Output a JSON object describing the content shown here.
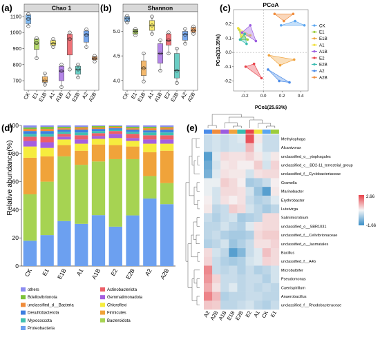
{
  "panel_labels": {
    "a": "(a)",
    "b": "(b)",
    "c": "(c)",
    "d": "(d)",
    "e": "(e)"
  },
  "groups": [
    "CK",
    "E1",
    "E1B",
    "A1",
    "A1B",
    "E2",
    "E2B",
    "A2",
    "A2B"
  ],
  "group_colors": {
    "CK": "#5aa5f0",
    "E1": "#9ccc3c",
    "E1B": "#f0a23c",
    "A1": "#f0e03c",
    "A1B": "#9b5ce0",
    "E2": "#e8424a",
    "E2B": "#38bcb0",
    "A2": "#4a8be8",
    "A2B": "#f08c3c"
  },
  "chart_data": [
    {
      "type": "box",
      "title": "Chao 1",
      "xlabel": "",
      "ylabel": "",
      "ylim": [
        640,
        1130
      ],
      "yticks": [
        700,
        800,
        900,
        1000,
        1100
      ],
      "categories": [
        "CK",
        "E1",
        "E1B",
        "A1",
        "A1B",
        "E2",
        "E2B",
        "A2",
        "A2B"
      ],
      "boxes": [
        {
          "group": "CK",
          "min": 1040,
          "q1": 1055,
          "median": 1085,
          "q3": 1110,
          "max": 1115,
          "points": [
            1040,
            1085,
            1115
          ]
        },
        {
          "group": "E1",
          "min": 840,
          "q1": 895,
          "median": 935,
          "q3": 960,
          "max": 965,
          "points": [
            840,
            935,
            965
          ]
        },
        {
          "group": "E1B",
          "min": 675,
          "q1": 690,
          "median": 700,
          "q3": 725,
          "max": 745,
          "points": [
            675,
            700,
            745
          ]
        },
        {
          "group": "A1",
          "min": 910,
          "q1": 920,
          "median": 930,
          "q3": 950,
          "max": 960,
          "points": [
            910,
            930,
            960
          ]
        },
        {
          "group": "A1B",
          "min": 660,
          "q1": 700,
          "median": 760,
          "q3": 790,
          "max": 800,
          "points": [
            660,
            760,
            800
          ]
        },
        {
          "group": "E2",
          "min": 770,
          "q1": 860,
          "median": 960,
          "q3": 990,
          "max": 1000,
          "points": [
            770,
            960,
            1000
          ]
        },
        {
          "group": "E2B",
          "min": 720,
          "q1": 740,
          "median": 770,
          "q3": 790,
          "max": 800,
          "points": [
            720,
            770,
            800
          ]
        },
        {
          "group": "A2",
          "min": 910,
          "q1": 940,
          "median": 985,
          "q3": 1010,
          "max": 1020,
          "points": [
            910,
            985,
            1020
          ]
        },
        {
          "group": "A2B",
          "min": 820,
          "q1": 830,
          "median": 840,
          "q3": 850,
          "max": 855,
          "points": [
            820,
            840,
            855
          ]
        }
      ]
    },
    {
      "type": "box",
      "title": "Shannon",
      "xlabel": "",
      "ylabel": "",
      "ylim": [
        3.8,
        5.4
      ],
      "yticks": [
        4.0,
        4.5,
        5.0
      ],
      "categories": [
        "CK",
        "E1",
        "E1B",
        "A1",
        "A1B",
        "E2",
        "E2B",
        "A2",
        "A2B"
      ],
      "boxes": [
        {
          "group": "CK",
          "min": 5.18,
          "q1": 5.2,
          "median": 5.26,
          "q3": 5.3,
          "max": 5.32,
          "points": [
            5.18,
            5.26,
            5.32
          ]
        },
        {
          "group": "E1",
          "min": 4.92,
          "q1": 4.95,
          "median": 5.0,
          "q3": 5.04,
          "max": 5.05,
          "points": [
            4.92,
            5.0,
            5.05
          ]
        },
        {
          "group": "E1B",
          "min": 3.98,
          "q1": 4.1,
          "median": 4.25,
          "q3": 4.4,
          "max": 4.55,
          "points": [
            3.98,
            4.25,
            4.55
          ]
        },
        {
          "group": "A1",
          "min": 4.95,
          "q1": 5.02,
          "median": 5.12,
          "q3": 5.22,
          "max": 5.3,
          "points": [
            4.95,
            5.12,
            5.3
          ]
        },
        {
          "group": "A1B",
          "min": 4.2,
          "q1": 4.35,
          "median": 4.55,
          "q3": 4.75,
          "max": 4.82,
          "points": [
            4.2,
            4.55,
            4.82
          ]
        },
        {
          "group": "E2",
          "min": 4.55,
          "q1": 4.72,
          "median": 4.82,
          "q3": 4.95,
          "max": 4.98,
          "points": [
            4.55,
            4.82,
            4.98
          ]
        },
        {
          "group": "E2B",
          "min": 3.95,
          "q1": 4.05,
          "median": 4.2,
          "q3": 4.55,
          "max": 4.65,
          "points": [
            3.95,
            4.2,
            4.65
          ]
        },
        {
          "group": "A2",
          "min": 4.75,
          "q1": 4.82,
          "median": 4.93,
          "q3": 5.0,
          "max": 5.05,
          "points": [
            4.75,
            4.93,
            5.05
          ]
        },
        {
          "group": "A2B",
          "min": 4.95,
          "q1": 4.98,
          "median": 5.02,
          "q3": 5.08,
          "max": 5.1,
          "points": [
            4.95,
            5.02,
            5.1
          ]
        }
      ]
    },
    {
      "type": "scatter",
      "title": "PCoA",
      "xlabel": "PCo1(25.63%)",
      "ylabel": "PCo2(13.35%)",
      "xlim": [
        -0.32,
        0.48
      ],
      "ylim": [
        -0.27,
        0.3
      ],
      "xticks": [
        -0.2,
        0.0,
        0.2,
        0.4
      ],
      "yticks": [
        -0.2,
        -0.1,
        0.0,
        0.1,
        0.2
      ],
      "legend_position": "right",
      "series": [
        {
          "name": "CK",
          "points": [
            [
              0.19,
              0.19
            ],
            [
              0.34,
              0.22
            ],
            [
              0.44,
              0.19
            ]
          ]
        },
        {
          "name": "E1",
          "points": [
            [
              -0.26,
              0.16
            ],
            [
              -0.17,
              0.09
            ],
            [
              -0.24,
              0.09
            ]
          ]
        },
        {
          "name": "E1B",
          "points": [
            [
              0.06,
              -0.02
            ],
            [
              0.18,
              -0.09
            ],
            [
              0.33,
              -0.05
            ]
          ]
        },
        {
          "name": "A1",
          "points": [
            [
              -0.27,
              0.17
            ],
            [
              -0.14,
              0.12
            ],
            [
              -0.23,
              0.11
            ]
          ]
        },
        {
          "name": "A1B",
          "points": [
            [
              -0.23,
              0.14
            ],
            [
              -0.14,
              0.19
            ],
            [
              -0.08,
              0.08
            ]
          ]
        },
        {
          "name": "E2",
          "points": [
            [
              -0.19,
              -0.1
            ],
            [
              -0.1,
              -0.08
            ],
            [
              -0.02,
              -0.18
            ]
          ]
        },
        {
          "name": "E2B",
          "points": [
            [
              -0.25,
              0.09
            ],
            [
              -0.2,
              0.13
            ],
            [
              -0.18,
              0.06
            ]
          ]
        },
        {
          "name": "A2",
          "points": [
            [
              0.05,
              -0.12
            ],
            [
              0.17,
              -0.2
            ],
            [
              0.28,
              -0.21
            ]
          ]
        },
        {
          "name": "A2B",
          "points": [
            [
              0.12,
              0.27
            ],
            [
              0.32,
              0.27
            ],
            [
              0.22,
              0.22
            ]
          ]
        }
      ]
    },
    {
      "type": "bar",
      "stacked": true,
      "xlabel": "",
      "ylabel": "Relative abundance(%)",
      "ylim": [
        0,
        100
      ],
      "yticks": [
        0,
        20,
        40,
        60,
        80,
        100
      ],
      "categories": [
        "CK",
        "E1",
        "E1B",
        "A1",
        "A1B",
        "E2",
        "E2B",
        "A2",
        "A2B"
      ],
      "legend_position": "bottom",
      "series": [
        {
          "name": "Proteobacteria",
          "color": "#6ca0f0",
          "values": [
            18,
            22,
            32,
            30,
            36,
            28,
            36,
            48,
            44
          ]
        },
        {
          "name": "Bacteroidota",
          "color": "#a6d352",
          "values": [
            33,
            38,
            46,
            42,
            38,
            48,
            40,
            16,
            15
          ]
        },
        {
          "name": "Firmicutes",
          "color": "#f0a33a",
          "values": [
            26,
            18,
            8,
            10,
            12,
            10,
            9,
            17,
            23
          ]
        },
        {
          "name": "Chloroflexi",
          "color": "#f6ec3e",
          "values": [
            8,
            6,
            4,
            5,
            4,
            5,
            4,
            6,
            5
          ]
        },
        {
          "name": "Gemmatimonadota",
          "color": "#a45fe0",
          "values": [
            4,
            4,
            2,
            3,
            2,
            3,
            2,
            3,
            3
          ]
        },
        {
          "name": "Actinobacteriota",
          "color": "#ec5f68",
          "values": [
            3,
            4,
            2,
            3,
            2,
            2,
            3,
            3,
            3
          ]
        },
        {
          "name": "Myxococcota",
          "color": "#40c0b0",
          "values": [
            2,
            2,
            1.5,
            2,
            1.5,
            1,
            1.5,
            2,
            2
          ]
        },
        {
          "name": "Desulfobacterota",
          "color": "#3d7fe0",
          "values": [
            2,
            2,
            1.5,
            2,
            1.5,
            1,
            1.5,
            1.5,
            2
          ]
        },
        {
          "name": "unclassified_d__Bacteria",
          "color": "#ef8b3a",
          "values": [
            1.5,
            1.5,
            1,
            1.5,
            1,
            1,
            1,
            1.5,
            1.5
          ]
        },
        {
          "name": "Bdellovibrionota",
          "color": "#7dc23a",
          "values": [
            1,
            1.5,
            1,
            0.5,
            1,
            0.5,
            1,
            1,
            0.5
          ]
        },
        {
          "name": "others",
          "color": "#8c8cf0",
          "values": [
            1.5,
            1,
            1,
            1,
            0.5,
            0.5,
            1,
            1,
            1
          ]
        }
      ],
      "legend_order": [
        "others",
        "Actinobacteriota",
        "Bdellovibrionota",
        "Gemmatimonadota",
        "unclassified_d__Bacteria",
        "Chloroflexi",
        "Desulfobacterota",
        "Firmicutes",
        "Myxococcota",
        "Bacteroidota",
        "Proteobacteria"
      ]
    },
    {
      "type": "heatmap",
      "colorbar": {
        "max_label": "2.66",
        "min_label": "-1.66",
        "min": -1.66,
        "max": 2.66
      },
      "columns": [
        "A2",
        "A2B",
        "A1B",
        "E1B",
        "E2B",
        "E2",
        "A1",
        "CK",
        "E1"
      ],
      "rows": [
        "Methylophaga",
        "Alcanivorax",
        "unclassified_o__ytophagales",
        "unclassified_c__BD2-11_terrestrial_group",
        "unclassified_f__Cyclobacteriaceae",
        "Gramella",
        "Marinobacter",
        "Erythrobacter",
        "Luteivirga",
        "Salinimicrobium",
        "unclassified_o__SBR1031",
        "unclassified_f__Cellvibrionaceae",
        "unclassified_o__lasmatales",
        "Bacillus",
        "unclassified_f__A4b",
        "Microbulbifer",
        "Pseudomonas",
        "Caenispirillum",
        "Anaerobacillus",
        "unclassified_f__Rhodobacteraceae"
      ],
      "values": [
        [
          -0.4,
          -0.3,
          -0.4,
          -0.3,
          -0.2,
          2.4,
          0.2,
          -0.4,
          -0.4
        ],
        [
          -0.4,
          -0.3,
          -0.4,
          -0.3,
          -0.3,
          0.9,
          -0.1,
          -0.4,
          -0.4
        ],
        [
          -1.4,
          -0.2,
          0.4,
          0.3,
          0.3,
          0.5,
          0.2,
          -0.2,
          0.2
        ],
        [
          -1.2,
          -0.3,
          0.2,
          0.3,
          0.1,
          0.1,
          0.6,
          -0.3,
          0.5
        ],
        [
          -1.1,
          -0.2,
          0.3,
          0.2,
          0.2,
          -0.3,
          0.3,
          0.4,
          0.4
        ],
        [
          -0.1,
          -0.1,
          0.6,
          0.4,
          0.1,
          -0.7,
          -0.6,
          -0.4,
          0.1
        ],
        [
          -0.1,
          -0.3,
          0.4,
          0.4,
          0.3,
          -0.3,
          -0.8,
          -1.4,
          0.2
        ],
        [
          0.1,
          -0.3,
          0.3,
          0.1,
          0.3,
          -0.4,
          -0.6,
          -0.5,
          -0.2
        ],
        [
          0.2,
          -0.5,
          -0.4,
          0.6,
          0.4,
          -0.3,
          -0.5,
          -0.7,
          -0.5
        ],
        [
          -0.4,
          -0.6,
          -0.4,
          -0.3,
          -0.7,
          -0.6,
          -0.5,
          0.4,
          0.4
        ],
        [
          -0.5,
          -0.5,
          -0.3,
          -0.5,
          -0.6,
          -0.2,
          0.3,
          0.4,
          0.4
        ],
        [
          -0.5,
          -0.4,
          -0.6,
          -0.7,
          -0.7,
          -0.6,
          0.4,
          0.6,
          0.6
        ],
        [
          -0.6,
          -0.5,
          -0.3,
          -0.8,
          -0.6,
          -0.4,
          0.3,
          0.3,
          0.5
        ],
        [
          0.4,
          -0.3,
          -0.5,
          -1.4,
          -1.0,
          -0.4,
          -0.2,
          0.8,
          0.4
        ],
        [
          0.5,
          -0.4,
          -0.6,
          -0.7,
          -0.6,
          -0.3,
          -0.2,
          0.5,
          0.4
        ],
        [
          1.6,
          -0.4,
          -0.5,
          -0.4,
          -0.6,
          -0.4,
          -0.6,
          -0.5,
          -0.3
        ],
        [
          1.4,
          0.5,
          -0.4,
          -0.4,
          -0.5,
          -0.4,
          -0.4,
          -0.6,
          -0.3
        ],
        [
          1.1,
          0.3,
          -0.4,
          -0.2,
          -0.5,
          -0.4,
          -0.5,
          -0.4,
          -0.5
        ],
        [
          1.7,
          0.9,
          -0.6,
          -0.5,
          -0.5,
          -0.4,
          -0.4,
          -0.5,
          -0.5
        ],
        [
          0.7,
          0.6,
          -0.5,
          -0.5,
          -0.4,
          -0.3,
          -0.5,
          -0.6,
          -0.4
        ]
      ]
    }
  ]
}
